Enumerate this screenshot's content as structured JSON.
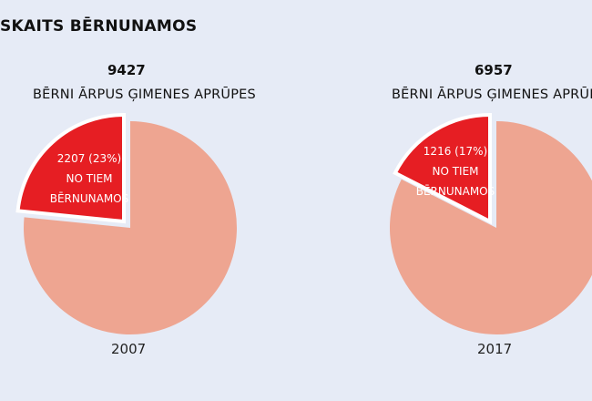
{
  "title": "SKAITS BĒRNUNAMOS",
  "colors": {
    "background": "#e6ebf6",
    "remainder": "#eea591",
    "highlight": "#e61e23",
    "separator": "#ffffff"
  },
  "chart_data": [
    {
      "type": "pie",
      "total_label": "9427",
      "subtitle": "BĒRNI ĀRPUS ĢIMENES APRŪPES",
      "year": "2007",
      "slice_label_lines": [
        "2207 (23%)",
        "NO TIEM",
        "BĒRNUNAMOS"
      ],
      "values": [
        2207,
        7220
      ],
      "percent": [
        23,
        77
      ]
    },
    {
      "type": "pie",
      "total_label": "6957",
      "subtitle": "BĒRNI ĀRPUS ĢIMENES APRŪPES",
      "year": "2017",
      "slice_label_lines": [
        "1216 (17%)",
        "NO TIEM",
        "BĒRNUNAMOS"
      ],
      "values": [
        1216,
        5741
      ],
      "percent": [
        17,
        83
      ]
    }
  ]
}
